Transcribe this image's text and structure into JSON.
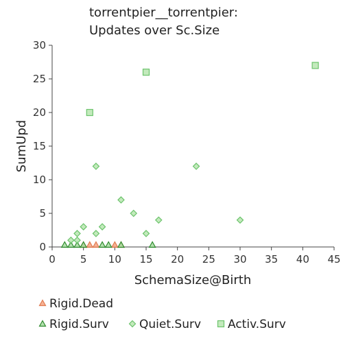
{
  "chart_data": {
    "type": "scatter",
    "title_lines": [
      "torrentpier__torrentpier:",
      "Updates over Sc.Size"
    ],
    "xlabel": "SchemaSize@Birth",
    "ylabel": "SumUpd",
    "xlim": [
      0,
      45
    ],
    "ylim": [
      0,
      30
    ],
    "x_ticks": [
      0,
      5,
      10,
      15,
      20,
      25,
      30,
      35,
      40,
      45
    ],
    "y_ticks": [
      0,
      5,
      10,
      15,
      20,
      25,
      30
    ],
    "grid": false,
    "legend_position": "bottom",
    "series": [
      {
        "name": "Rigid.Dead",
        "marker": "triangle",
        "color": "#f4a582",
        "stroke": "#e07a4f",
        "points": [
          [
            5,
            0
          ],
          [
            6,
            0
          ],
          [
            7,
            0
          ],
          [
            10,
            0
          ],
          [
            11,
            0
          ]
        ]
      },
      {
        "name": "Rigid.Surv",
        "marker": "triangle",
        "color": "#a6dba0",
        "stroke": "#2e8b2e",
        "points": [
          [
            2,
            0
          ],
          [
            3,
            0
          ],
          [
            4,
            0
          ],
          [
            5,
            0
          ],
          [
            8,
            0
          ],
          [
            9,
            0
          ],
          [
            11,
            0
          ],
          [
            16,
            0
          ]
        ]
      },
      {
        "name": "Quiet.Surv",
        "marker": "diamond",
        "color": "#b8e6b0",
        "stroke": "#6cc36c",
        "points": [
          [
            3,
            1
          ],
          [
            4,
            1
          ],
          [
            4,
            2
          ],
          [
            5,
            3
          ],
          [
            7,
            2
          ],
          [
            8,
            3
          ],
          [
            7,
            12
          ],
          [
            11,
            7
          ],
          [
            13,
            5
          ],
          [
            15,
            2
          ],
          [
            17,
            4
          ],
          [
            23,
            12
          ],
          [
            30,
            4
          ]
        ]
      },
      {
        "name": "Activ.Surv",
        "marker": "square",
        "color": "#b8e6b0",
        "stroke": "#6cc36c",
        "points": [
          [
            6,
            20
          ],
          [
            15,
            26
          ],
          [
            42,
            27
          ]
        ]
      }
    ]
  }
}
